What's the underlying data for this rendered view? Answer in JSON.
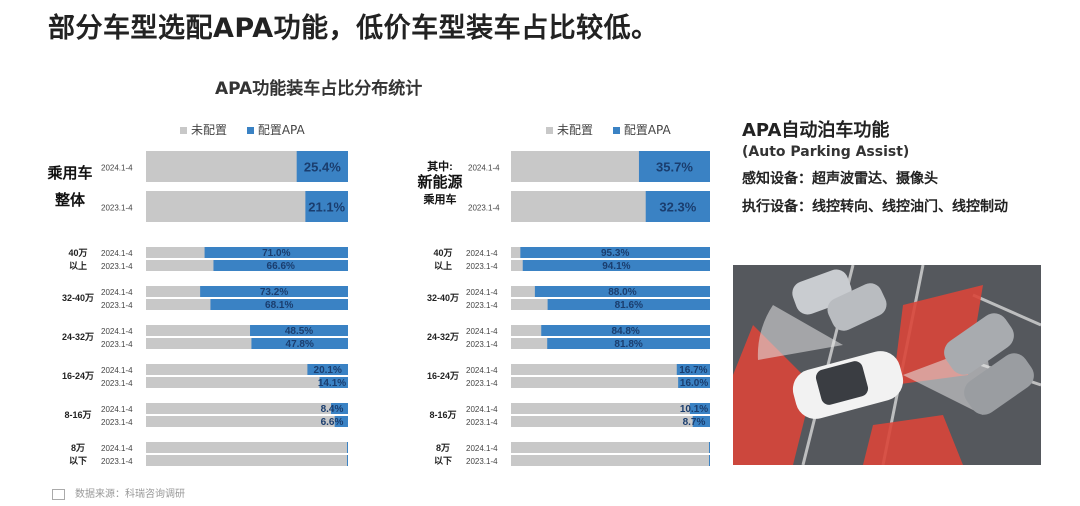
{
  "title": "部分车型选配APA功能，低价车型装车占比较低。",
  "chart_title": "APA功能装车占比分布统计",
  "legend": {
    "not_configured": "未配置",
    "configured": "配置APA"
  },
  "colors": {
    "not_configured": "#c8c8c8",
    "configured": "#3a82c4",
    "value_text": "#1a3d6e"
  },
  "chart_data": [
    {
      "type": "bar",
      "orientation": "horizontal-stacked-percent",
      "series": [
        {
          "name": "配置APA",
          "legend_ref": "configured"
        },
        {
          "name": "未配置",
          "legend_ref": "not_configured"
        }
      ],
      "top_group": {
        "label_lines": [
          "乘用车",
          "整体"
        ],
        "rows": [
          {
            "period": "2024.1-4",
            "value": 25.4,
            "label": "25.4%"
          },
          {
            "period": "2023.1-4",
            "value": 21.1,
            "label": "21.1%"
          }
        ]
      },
      "groups": [
        {
          "label_lines": [
            "40万",
            "以上"
          ],
          "rows": [
            {
              "period": "2024.1-4",
              "value": 71.0,
              "label": "71.0%"
            },
            {
              "period": "2023.1-4",
              "value": 66.6,
              "label": "66.6%"
            }
          ]
        },
        {
          "label_lines": [
            "32-40万"
          ],
          "rows": [
            {
              "period": "2024.1-4",
              "value": 73.2,
              "label": "73.2%"
            },
            {
              "period": "2023.1-4",
              "value": 68.1,
              "label": "68.1%"
            }
          ]
        },
        {
          "label_lines": [
            "24-32万"
          ],
          "rows": [
            {
              "period": "2024.1-4",
              "value": 48.5,
              "label": "48.5%"
            },
            {
              "period": "2023.1-4",
              "value": 47.8,
              "label": "47.8%"
            }
          ]
        },
        {
          "label_lines": [
            "16-24万"
          ],
          "rows": [
            {
              "period": "2024.1-4",
              "value": 20.1,
              "label": "20.1%"
            },
            {
              "period": "2023.1-4",
              "value": 14.1,
              "label": "14.1%"
            }
          ]
        },
        {
          "label_lines": [
            "8-16万"
          ],
          "rows": [
            {
              "period": "2024.1-4",
              "value": 8.4,
              "label": "8.4%"
            },
            {
              "period": "2023.1-4",
              "value": 6.6,
              "label": "6.6%"
            }
          ]
        },
        {
          "label_lines": [
            "8万",
            "以下"
          ],
          "rows": [
            {
              "period": "2024.1-4",
              "value": 0.5,
              "label": ""
            },
            {
              "period": "2023.1-4",
              "value": 0.5,
              "label": ""
            }
          ]
        }
      ]
    },
    {
      "type": "bar",
      "orientation": "horizontal-stacked-percent",
      "series": [
        {
          "name": "配置APA",
          "legend_ref": "configured"
        },
        {
          "name": "未配置",
          "legend_ref": "not_configured"
        }
      ],
      "top_group": {
        "label_lines": [
          "其中:",
          "新能源",
          "乘用车"
        ],
        "rows": [
          {
            "period": "2024.1-4",
            "value": 35.7,
            "label": "35.7%"
          },
          {
            "period": "2023.1-4",
            "value": 32.3,
            "label": "32.3%"
          }
        ]
      },
      "groups": [
        {
          "label_lines": [
            "40万",
            "以上"
          ],
          "rows": [
            {
              "period": "2024.1-4",
              "value": 95.3,
              "label": "95.3%"
            },
            {
              "period": "2023.1-4",
              "value": 94.1,
              "label": "94.1%"
            }
          ]
        },
        {
          "label_lines": [
            "32-40万"
          ],
          "rows": [
            {
              "period": "2024.1-4",
              "value": 88.0,
              "label": "88.0%"
            },
            {
              "period": "2023.1-4",
              "value": 81.6,
              "label": "81.6%"
            }
          ]
        },
        {
          "label_lines": [
            "24-32万"
          ],
          "rows": [
            {
              "period": "2024.1-4",
              "value": 84.8,
              "label": "84.8%"
            },
            {
              "period": "2023.1-4",
              "value": 81.8,
              "label": "81.8%"
            }
          ]
        },
        {
          "label_lines": [
            "16-24万"
          ],
          "rows": [
            {
              "period": "2024.1-4",
              "value": 16.7,
              "label": "16.7%"
            },
            {
              "period": "2023.1-4",
              "value": 16.0,
              "label": "16.0%"
            }
          ]
        },
        {
          "label_lines": [
            "8-16万"
          ],
          "rows": [
            {
              "period": "2024.1-4",
              "value": 10.1,
              "label": "10.1%"
            },
            {
              "period": "2023.1-4",
              "value": 8.7,
              "label": "8.7%"
            }
          ]
        },
        {
          "label_lines": [
            "8万",
            "以下"
          ],
          "rows": [
            {
              "period": "2024.1-4",
              "value": 0.5,
              "label": ""
            },
            {
              "period": "2023.1-4",
              "value": 0.5,
              "label": ""
            }
          ]
        }
      ]
    }
  ],
  "right_panel": {
    "title": "APA自动泊车功能",
    "subtitle": "(Auto Parking Assist)",
    "sensing": "感知设备：超声波雷达、摄像头",
    "actuation": "执行设备：线控转向、线控油门、线控制动"
  },
  "source": "数据来源：科瑞咨询调研"
}
